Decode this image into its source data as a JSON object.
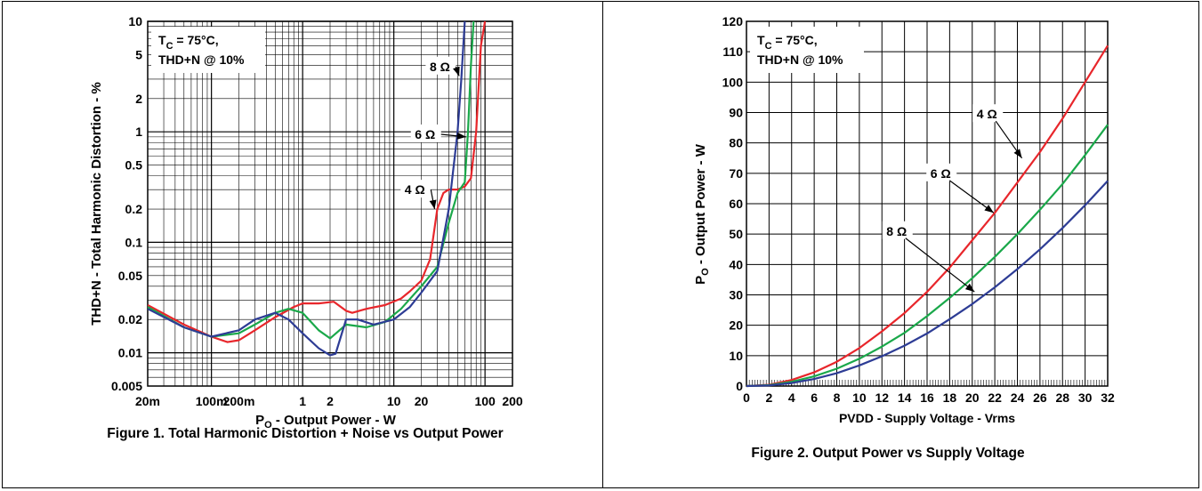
{
  "figure1": {
    "caption": "Figure 1.  Total Harmonic Distortion + Noise vs Output Power",
    "annotation": {
      "line1_main": "T",
      "line1_sub": "C",
      "line1_rest": " = 75°C,",
      "line2": "THD+N @ 10%"
    }
  },
  "figure2": {
    "caption": "Figure 2.  Output Power vs Supply Voltage",
    "annotation": {
      "line1_main": "T",
      "line1_sub": "C",
      "line1_rest": " = 75°C,",
      "line2": "THD+N @ 10%"
    }
  },
  "chart_data": [
    {
      "type": "line",
      "xscale": "log",
      "yscale": "log",
      "xlim": [
        0.02,
        200
      ],
      "ylim": [
        0.005,
        10
      ],
      "grid": true,
      "xlabel_main": "P",
      "xlabel_sub": "O",
      "xlabel_rest": " - Output Power - W",
      "ylabel": "THD+N - Total Harmonic Distortion - %",
      "x_ticks": [
        {
          "v": 0.02,
          "label": "20m"
        },
        {
          "v": 0.1,
          "label": "100m"
        },
        {
          "v": 0.2,
          "label": "200m"
        },
        {
          "v": 1,
          "label": "1"
        },
        {
          "v": 2,
          "label": "2"
        },
        {
          "v": 10,
          "label": "10"
        },
        {
          "v": 20,
          "label": "20"
        },
        {
          "v": 100,
          "label": "100"
        },
        {
          "v": 200,
          "label": "200"
        }
      ],
      "y_ticks": [
        {
          "v": 10,
          "label": "10"
        },
        {
          "v": 5,
          "label": "5"
        },
        {
          "v": 2,
          "label": "2"
        },
        {
          "v": 1,
          "label": "1"
        },
        {
          "v": 0.5,
          "label": "0.5"
        },
        {
          "v": 0.2,
          "label": "0.2"
        },
        {
          "v": 0.1,
          "label": "0.1"
        },
        {
          "v": 0.05,
          "label": "0.05"
        },
        {
          "v": 0.02,
          "label": "0.02"
        },
        {
          "v": 0.01,
          "label": "0.01"
        },
        {
          "v": 0.005,
          "label": "0.005"
        }
      ],
      "series": [
        {
          "name": "4 Ω",
          "color": "#e8262b",
          "points": [
            [
              0.02,
              0.027
            ],
            [
              0.05,
              0.018
            ],
            [
              0.1,
              0.014
            ],
            [
              0.15,
              0.0125
            ],
            [
              0.2,
              0.013
            ],
            [
              0.3,
              0.016
            ],
            [
              0.5,
              0.021
            ],
            [
              0.8,
              0.026
            ],
            [
              1,
              0.028
            ],
            [
              1.5,
              0.028
            ],
            [
              2.2,
              0.029
            ],
            [
              3,
              0.024
            ],
            [
              3.5,
              0.023
            ],
            [
              5,
              0.025
            ],
            [
              8,
              0.027
            ],
            [
              12,
              0.031
            ],
            [
              15,
              0.036
            ],
            [
              20,
              0.045
            ],
            [
              25,
              0.07
            ],
            [
              30,
              0.2
            ],
            [
              35,
              0.28
            ],
            [
              40,
              0.3
            ],
            [
              50,
              0.3
            ],
            [
              60,
              0.32
            ],
            [
              70,
              0.38
            ],
            [
              80,
              1
            ],
            [
              90,
              6
            ],
            [
              100,
              10
            ]
          ]
        },
        {
          "name": "6 Ω",
          "color": "#1aa84a",
          "points": [
            [
              0.02,
              0.026
            ],
            [
              0.05,
              0.017
            ],
            [
              0.1,
              0.014
            ],
            [
              0.2,
              0.015
            ],
            [
              0.3,
              0.018
            ],
            [
              0.5,
              0.023
            ],
            [
              0.7,
              0.025
            ],
            [
              1,
              0.023
            ],
            [
              1.5,
              0.016
            ],
            [
              2,
              0.0135
            ],
            [
              3,
              0.018
            ],
            [
              5,
              0.017
            ],
            [
              8,
              0.019
            ],
            [
              12,
              0.025
            ],
            [
              20,
              0.04
            ],
            [
              30,
              0.06
            ],
            [
              40,
              0.15
            ],
            [
              50,
              0.28
            ],
            [
              60,
              0.35
            ],
            [
              65,
              1
            ],
            [
              70,
              4
            ],
            [
              75,
              10
            ]
          ]
        },
        {
          "name": "8 Ω",
          "color": "#2d3c95",
          "points": [
            [
              0.02,
              0.025
            ],
            [
              0.05,
              0.017
            ],
            [
              0.1,
              0.014
            ],
            [
              0.2,
              0.016
            ],
            [
              0.3,
              0.02
            ],
            [
              0.5,
              0.023
            ],
            [
              0.7,
              0.02
            ],
            [
              1,
              0.015
            ],
            [
              1.5,
              0.011
            ],
            [
              2,
              0.0095
            ],
            [
              2.3,
              0.0098
            ],
            [
              3,
              0.02
            ],
            [
              4,
              0.02
            ],
            [
              6,
              0.018
            ],
            [
              10,
              0.02
            ],
            [
              15,
              0.026
            ],
            [
              20,
              0.035
            ],
            [
              30,
              0.055
            ],
            [
              40,
              0.2
            ],
            [
              50,
              1
            ],
            [
              55,
              3
            ],
            [
              60,
              10
            ]
          ]
        }
      ],
      "series_labels": [
        {
          "text": "8 Ω",
          "at": [
            32,
            3.9
          ],
          "to": [
            52,
            3.2
          ]
        },
        {
          "text": "6 Ω",
          "at": [
            22,
            0.95
          ],
          "to": [
            62,
            0.9
          ]
        },
        {
          "text": "4 Ω",
          "at": [
            17,
            0.3
          ],
          "to": [
            28,
            0.2
          ]
        }
      ]
    },
    {
      "type": "line",
      "xlim": [
        0,
        32
      ],
      "ylim": [
        0,
        120
      ],
      "grid": true,
      "xlabel": "PVDD - Supply Voltage - Vrms",
      "ylabel_main": "P",
      "ylabel_sub": "O",
      "ylabel_rest": " - Output Power - W",
      "x_ticks": [
        0,
        2,
        4,
        6,
        8,
        10,
        12,
        14,
        16,
        18,
        20,
        22,
        24,
        26,
        28,
        30,
        32
      ],
      "y_ticks": [
        0,
        10,
        20,
        30,
        40,
        50,
        60,
        70,
        80,
        90,
        100,
        110,
        120
      ],
      "series": [
        {
          "name": "4 Ω",
          "color": "#e8262b",
          "points": [
            [
              0,
              0
            ],
            [
              2,
              0.4
            ],
            [
              4,
              2
            ],
            [
              6,
              4.5
            ],
            [
              8,
              8
            ],
            [
              10,
              12.5
            ],
            [
              12,
              18
            ],
            [
              14,
              24
            ],
            [
              16,
              31
            ],
            [
              18,
              39
            ],
            [
              20,
              48
            ],
            [
              22,
              57
            ],
            [
              24,
              67
            ],
            [
              26,
              77
            ],
            [
              28,
              88
            ],
            [
              30,
              100
            ],
            [
              32,
              112
            ]
          ]
        },
        {
          "name": "6 Ω",
          "color": "#1aa84a",
          "points": [
            [
              0,
              0
            ],
            [
              2,
              0.3
            ],
            [
              4,
              1.4
            ],
            [
              6,
              3.2
            ],
            [
              8,
              5.7
            ],
            [
              10,
              9
            ],
            [
              12,
              13
            ],
            [
              14,
              17.5
            ],
            [
              16,
              23
            ],
            [
              18,
              29
            ],
            [
              20,
              35.5
            ],
            [
              22,
              42.5
            ],
            [
              24,
              50
            ],
            [
              26,
              58
            ],
            [
              28,
              66.5
            ],
            [
              30,
              76
            ],
            [
              32,
              86
            ]
          ]
        },
        {
          "name": "8 Ω",
          "color": "#2d3c95",
          "points": [
            [
              0,
              0
            ],
            [
              2,
              0.2
            ],
            [
              4,
              1
            ],
            [
              6,
              2.3
            ],
            [
              8,
              4.2
            ],
            [
              10,
              6.8
            ],
            [
              12,
              9.8
            ],
            [
              14,
              13.3
            ],
            [
              16,
              17.3
            ],
            [
              18,
              22
            ],
            [
              20,
              27
            ],
            [
              22,
              32.5
            ],
            [
              24,
              38.5
            ],
            [
              26,
              45
            ],
            [
              28,
              52
            ],
            [
              30,
              59.5
            ],
            [
              32,
              67.5
            ]
          ]
        }
      ],
      "series_labels": [
        {
          "text": "4 Ω",
          "at": [
            21.3,
            89.5
          ],
          "to": [
            24.4,
            75
          ]
        },
        {
          "text": "6 Ω",
          "at": [
            17.2,
            70
          ],
          "to": [
            21.9,
            57
          ]
        },
        {
          "text": "8 Ω",
          "at": [
            13.3,
            51
          ],
          "to": [
            20.2,
            31
          ]
        }
      ]
    }
  ]
}
